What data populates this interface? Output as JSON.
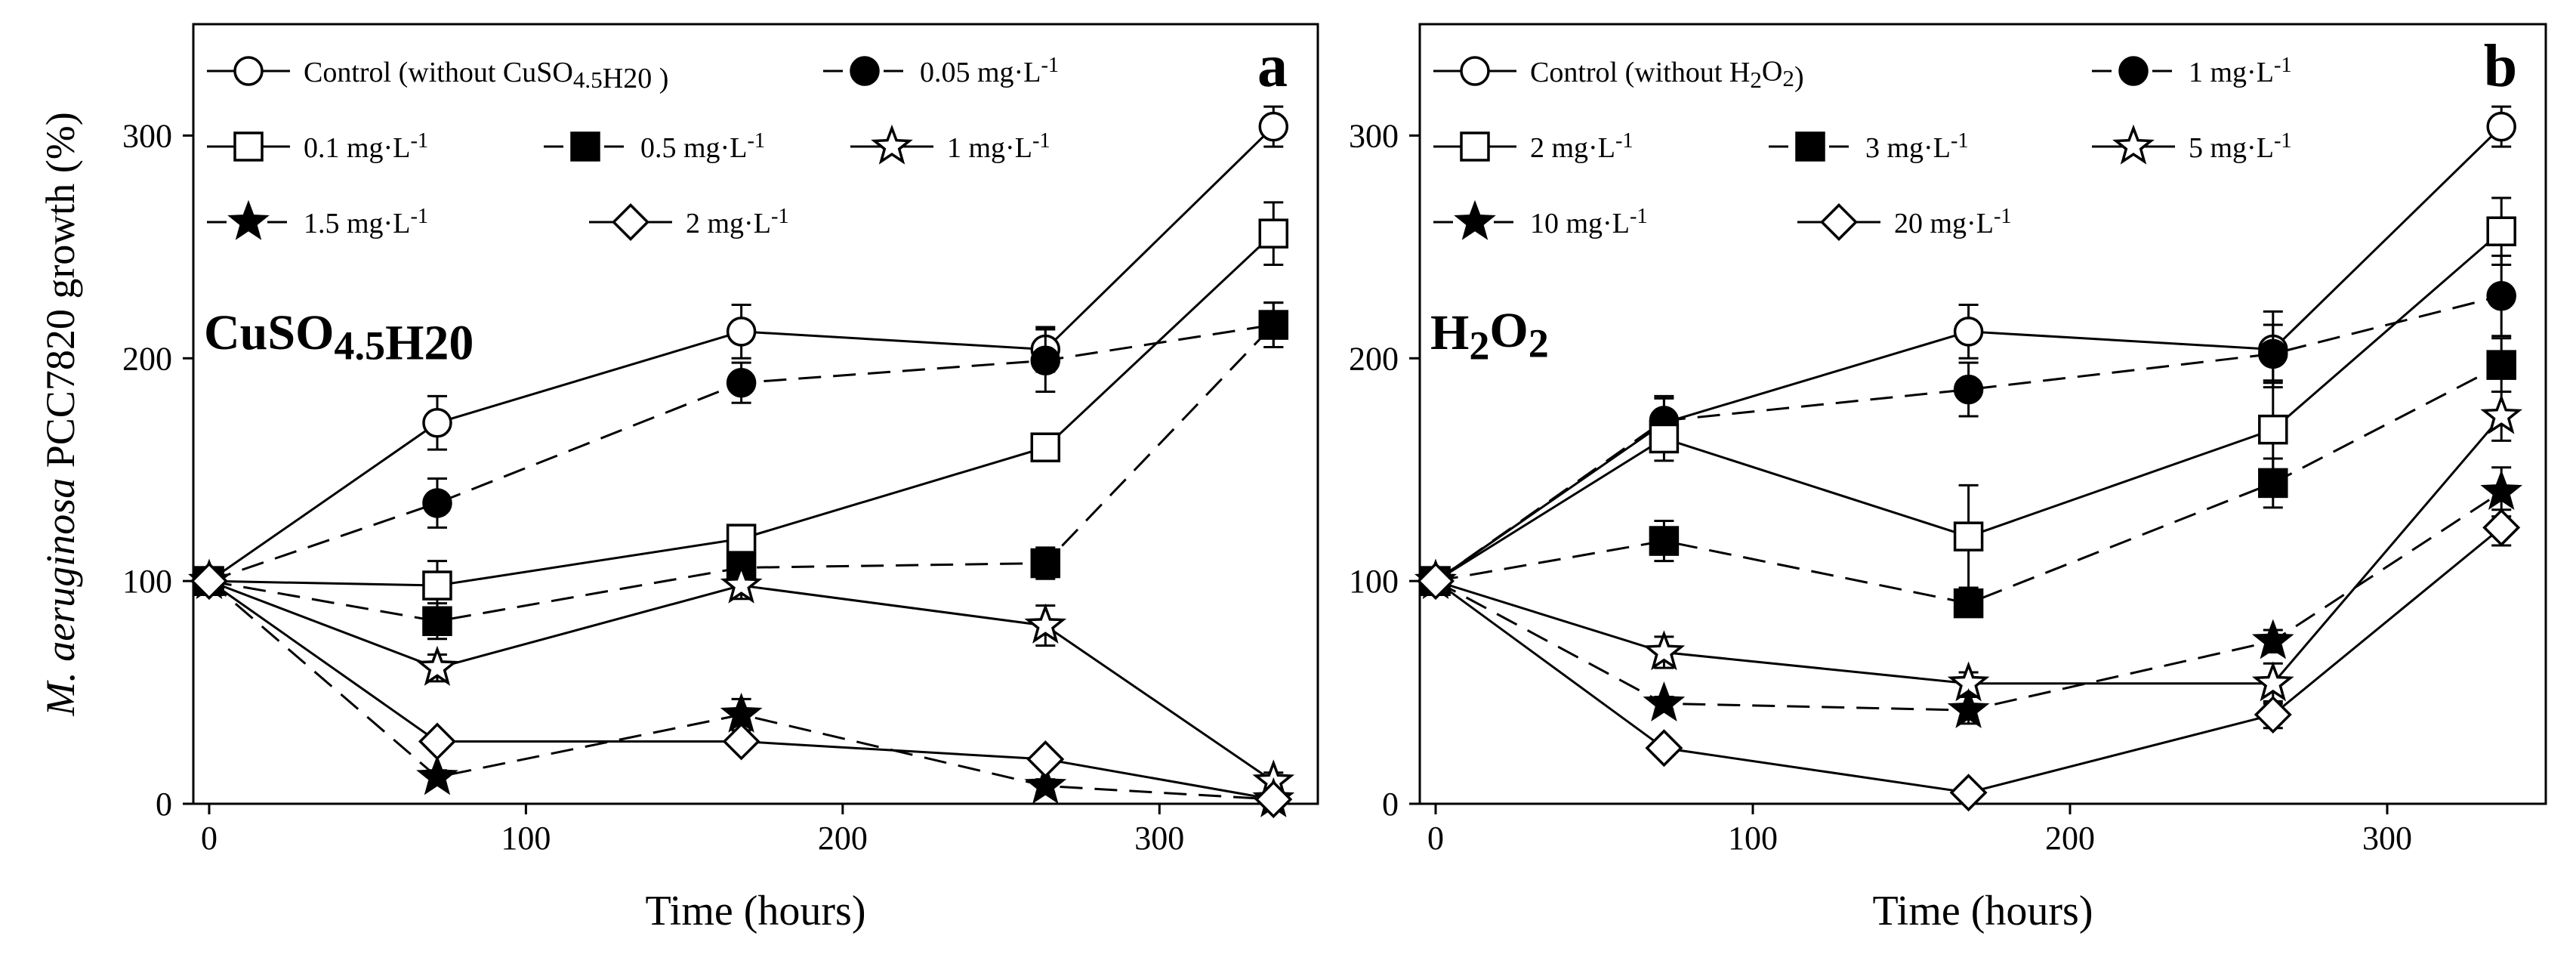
{
  "colors": {
    "background": "#ffffff",
    "ink": "#000000",
    "hollow_fill": "#ffffff"
  },
  "shared": {
    "xlabel": "Time (hours)",
    "ylabel_italic": "M. aeruginosa",
    "ylabel_rest": " PCC7820 growth (%)",
    "x_ticks": [
      "0",
      "100",
      "200",
      "300"
    ],
    "y_ticks": [
      "0",
      "100",
      "200",
      "300"
    ]
  },
  "chart_data": [
    {
      "type": "line",
      "panel_letter": "a",
      "title": "CuSO4.5H20",
      "xlabel": "Time (hours)",
      "ylabel": "M. aeruginosa PCC7820 growth (%)",
      "xlim": [
        -5,
        350
      ],
      "ylim": [
        0,
        350
      ],
      "x": [
        0,
        72,
        168,
        264,
        336
      ],
      "legend": [
        [
          "Control (without CuSO4.5H20 )",
          "0.05 mg·L-1"
        ],
        [
          "0.1 mg·L-1",
          "0.5 mg·L-1",
          "1 mg·L-1"
        ],
        [
          "1.5 mg·L-1",
          "2 mg·L-1"
        ]
      ],
      "series": [
        {
          "name": "Control (without CuSO4.5H20 )",
          "marker": "circle",
          "filled": false,
          "dashed": false,
          "values": [
            100,
            171,
            212,
            204,
            304
          ],
          "errors": [
            0,
            12,
            12,
            10,
            9
          ]
        },
        {
          "name": "0.05 mg·L-1",
          "marker": "circle",
          "filled": true,
          "dashed": true,
          "values": [
            100,
            135,
            189,
            199,
            215
          ],
          "errors": [
            0,
            11,
            9,
            14,
            10
          ]
        },
        {
          "name": "0.1 mg·L-1",
          "marker": "square",
          "filled": false,
          "dashed": false,
          "values": [
            100,
            98,
            119,
            160,
            256
          ],
          "errors": [
            0,
            11,
            6,
            5,
            14
          ]
        },
        {
          "name": "0.5 mg·L-1",
          "marker": "square",
          "filled": true,
          "dashed": true,
          "values": [
            100,
            82,
            106,
            108,
            215
          ],
          "errors": [
            0,
            8,
            6,
            7,
            10
          ]
        },
        {
          "name": "1 mg·L-1",
          "marker": "star",
          "filled": false,
          "dashed": false,
          "values": [
            100,
            61,
            98,
            80,
            10
          ],
          "errors": [
            0,
            6,
            6,
            9,
            4
          ]
        },
        {
          "name": "1.5 mg·L-1",
          "marker": "star",
          "filled": true,
          "dashed": true,
          "values": [
            100,
            12,
            40,
            8,
            2
          ],
          "errors": [
            0,
            3,
            7,
            3,
            2
          ]
        },
        {
          "name": "2 mg·L-1",
          "marker": "diamond",
          "filled": false,
          "dashed": false,
          "values": [
            100,
            28,
            28,
            20,
            2
          ],
          "errors": [
            0,
            2,
            3,
            3,
            2
          ]
        }
      ]
    },
    {
      "type": "line",
      "panel_letter": "b",
      "title": "H2O2",
      "xlabel": "Time (hours)",
      "ylabel": "",
      "xlim": [
        -5,
        350
      ],
      "ylim": [
        0,
        350
      ],
      "x": [
        0,
        72,
        168,
        264,
        336
      ],
      "legend": [
        [
          "Control (without H2O2)",
          "1 mg·L-1"
        ],
        [
          "2 mg·L-1",
          "3 mg·L-1",
          "5 mg·L-1"
        ],
        [
          "10 mg·L-1",
          "20 mg·L-1"
        ]
      ],
      "series": [
        {
          "name": "Control (without H2O2)",
          "marker": "circle",
          "filled": false,
          "dashed": false,
          "values": [
            100,
            171,
            212,
            204,
            304
          ],
          "errors": [
            0,
            12,
            12,
            17,
            9
          ]
        },
        {
          "name": "1 mg·L-1",
          "marker": "circle",
          "filled": true,
          "dashed": true,
          "values": [
            100,
            172,
            186,
            202,
            228
          ],
          "errors": [
            0,
            10,
            12,
            13,
            18
          ]
        },
        {
          "name": "2 mg·L-1",
          "marker": "square",
          "filled": false,
          "dashed": false,
          "values": [
            100,
            164,
            120,
            168,
            257
          ],
          "errors": [
            0,
            10,
            23,
            22,
            15
          ]
        },
        {
          "name": "3 mg·L-1",
          "marker": "square",
          "filled": true,
          "dashed": true,
          "values": [
            100,
            118,
            90,
            144,
            197
          ],
          "errors": [
            0,
            9,
            6,
            11,
            12
          ]
        },
        {
          "name": "5 mg·L-1",
          "marker": "star",
          "filled": false,
          "dashed": false,
          "values": [
            100,
            68,
            54,
            54,
            174
          ],
          "errors": [
            0,
            7,
            5,
            9,
            11
          ]
        },
        {
          "name": "10 mg·L-1",
          "marker": "star",
          "filled": true,
          "dashed": true,
          "values": [
            100,
            45,
            42,
            73,
            140
          ],
          "errors": [
            0,
            3,
            6,
            5,
            11
          ]
        },
        {
          "name": "20 mg·L-1",
          "marker": "diamond",
          "filled": false,
          "dashed": false,
          "values": [
            100,
            25,
            5,
            40,
            124
          ],
          "errors": [
            0,
            2,
            1,
            6,
            8
          ]
        }
      ]
    }
  ]
}
